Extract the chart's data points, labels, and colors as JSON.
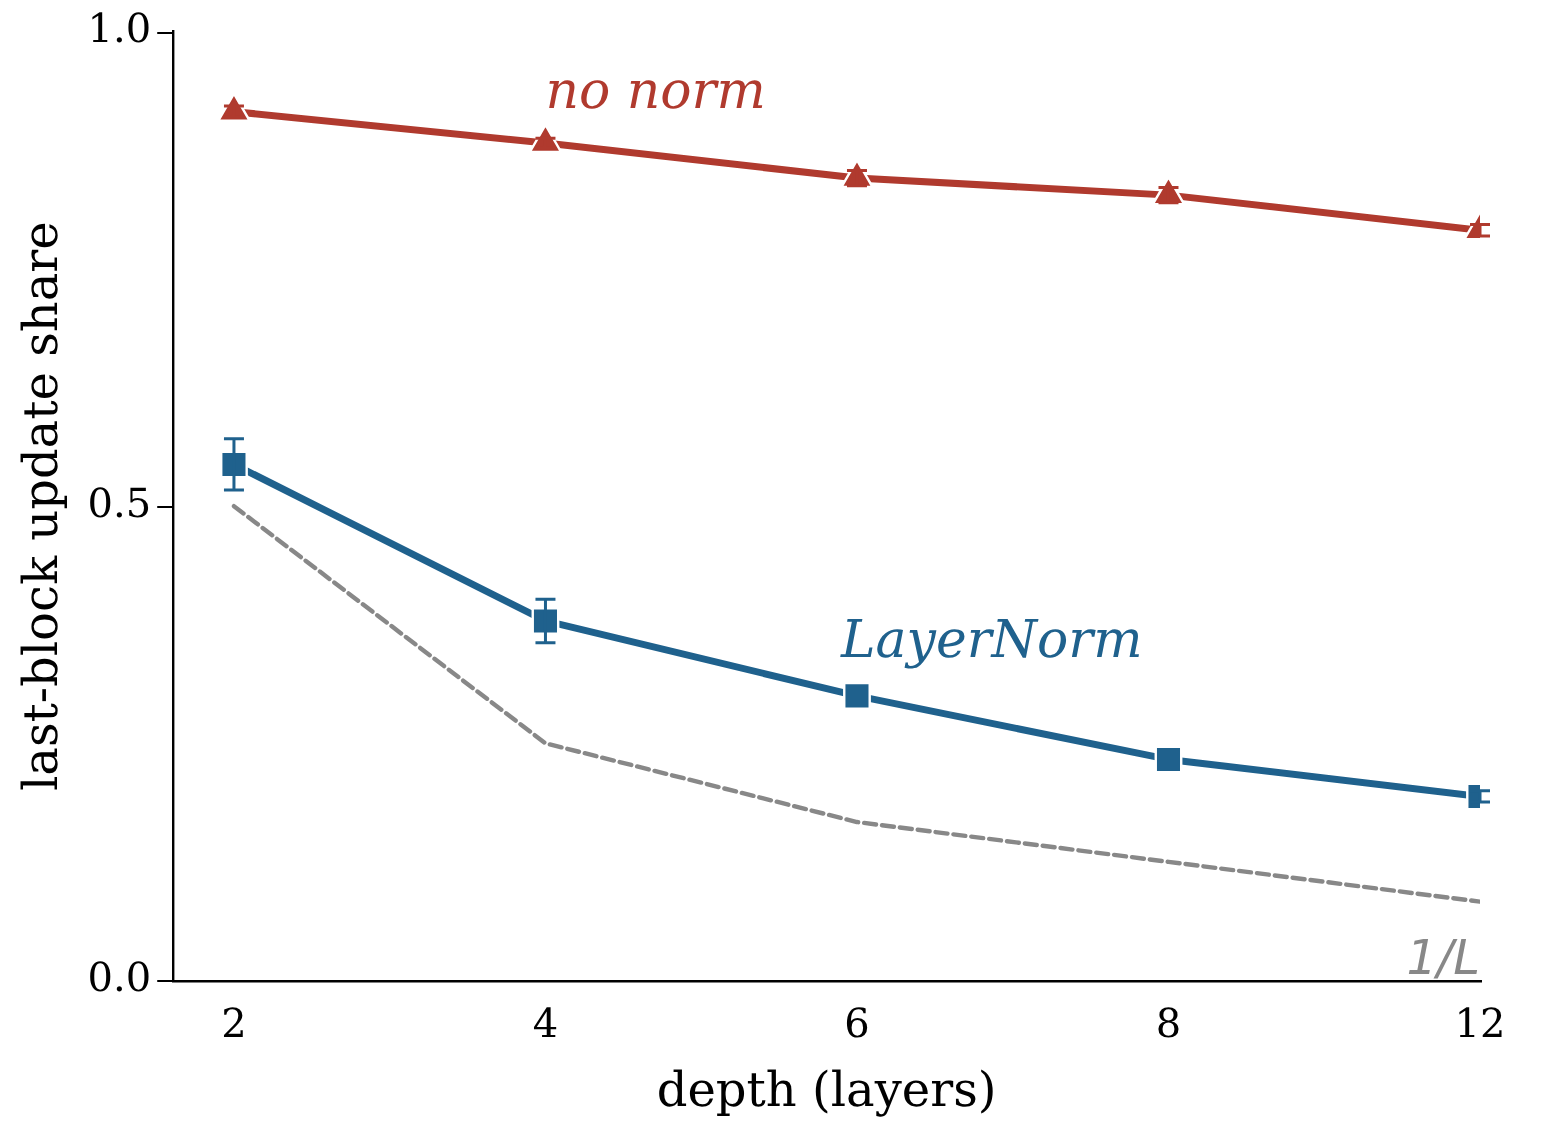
{
  "chart_data": {
    "type": "line",
    "xlabel": "depth (layers)",
    "ylabel": "last-block update share",
    "categories": [
      "2",
      "4",
      "6",
      "8",
      "12"
    ],
    "ylim": [
      0,
      1
    ],
    "yticks": [
      {
        "value": 0,
        "label": "0.0"
      },
      {
        "value": 0.5,
        "label": "0.5"
      },
      {
        "value": 1,
        "label": "1.0"
      }
    ],
    "grid": false,
    "legend": false,
    "series": [
      {
        "name": "no norm",
        "color": "#b03a2e",
        "values": [
          0.916,
          0.883,
          0.846,
          0.828,
          0.791
        ],
        "errors": [
          0.006,
          0.005,
          0.008,
          0.008,
          0.006
        ],
        "marker": "triangle",
        "line_style": "solid"
      },
      {
        "name": "LayerNorm",
        "color": "#1f618d",
        "values": [
          0.544,
          0.379,
          0.3,
          0.233,
          0.194
        ],
        "errors": [
          0.027,
          0.023,
          null,
          null,
          0.006
        ],
        "marker": "square",
        "line_style": "solid"
      },
      {
        "name": "1/L",
        "color": "#888888",
        "values": [
          0.5,
          0.25,
          0.167,
          0.125,
          0.083
        ],
        "marker": "none",
        "line_style": "dashed"
      }
    ]
  }
}
